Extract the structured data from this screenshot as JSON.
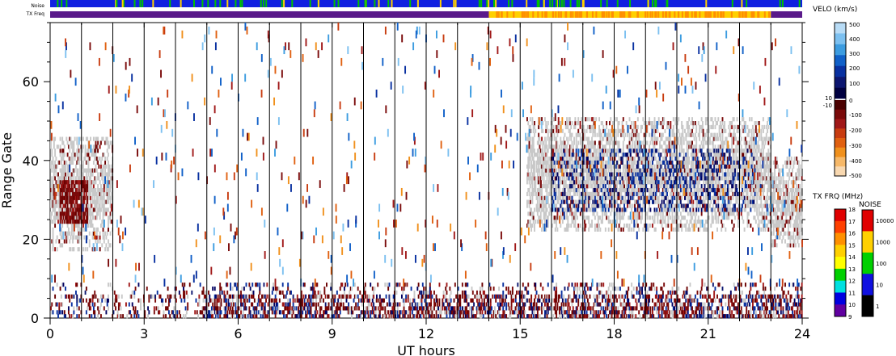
{
  "chart_data": {
    "type": "heatmap",
    "title": "",
    "xlabel": "UT hours",
    "ylabel": "Range Gate",
    "xlim": [
      0,
      24
    ],
    "ylim": [
      0,
      75
    ],
    "x_ticks": [
      0,
      3,
      6,
      9,
      12,
      15,
      18,
      21,
      24
    ],
    "y_ticks": [
      0,
      20,
      40,
      60
    ],
    "hour_gridlines": [
      1,
      2,
      3,
      4,
      5,
      6,
      7,
      8,
      9,
      10,
      11,
      12,
      13,
      14,
      15,
      16,
      17,
      18,
      19,
      20,
      21,
      22,
      23
    ],
    "top_strips": {
      "noise_label": "Noise",
      "txfreq_label": "TX Freq",
      "txfreq_segments": [
        {
          "start": 0,
          "end": 14,
          "color": "#5a1a8a"
        },
        {
          "start": 14,
          "end": 23,
          "color": "#ffd000"
        },
        {
          "start": 23,
          "end": 24,
          "color": "#5a1a8a"
        }
      ]
    },
    "velocity_scale": {
      "title": "VELO (km/s)",
      "ticks": [
        "500",
        "400",
        "300",
        "200",
        "100",
        "10",
        "0",
        "-10",
        "-100",
        "-200",
        "-300",
        "-400",
        "-500"
      ],
      "colors_positive": [
        "#b8dcf6",
        "#7cc0f0",
        "#3c9ce0",
        "#1060c8",
        "#0830a0",
        "#0c1670",
        "#000040"
      ],
      "colors_negative": [
        "#4a0000",
        "#7a0a0a",
        "#a01818",
        "#c83c10",
        "#e06010",
        "#f0901c",
        "#f6b868",
        "#f8d8b0"
      ]
    },
    "txfrq_scale": {
      "title": "TX FRQ (MHz)",
      "ticks": [
        "18",
        "17",
        "16",
        "15",
        "14",
        "13",
        "12",
        "11",
        "10",
        "9"
      ],
      "colors": [
        "#e00000",
        "#ff4000",
        "#ff9000",
        "#ffd000",
        "#ffff00",
        "#00d000",
        "#00e0e0",
        "#0000e0",
        "#6000a0"
      ]
    },
    "noise_scale": {
      "title": "NOISE",
      "ticks": [
        "10000",
        "1000",
        "100",
        "10",
        "1"
      ],
      "colors": [
        "#e00000",
        "#ffd000",
        "#00d000",
        "#1010e0",
        "#000000"
      ]
    },
    "echo_regions": [
      {
        "name": "ground scatter early",
        "x": [
          0.0,
          2.0
        ],
        "gates": [
          17,
          45
        ],
        "kind": "ground"
      },
      {
        "name": "negative echoes early",
        "x": [
          0.3,
          1.2
        ],
        "gates": [
          24,
          34
        ],
        "kind": "negative"
      },
      {
        "name": "ground scatter late",
        "x": [
          15.2,
          23.0
        ],
        "gates": [
          22,
          50
        ],
        "kind": "ground"
      },
      {
        "name": "positive echoes late",
        "x": [
          16.0,
          22.5
        ],
        "gates": [
          27,
          42
        ],
        "kind": "positive"
      },
      {
        "name": "ground scatter end",
        "x": [
          23.0,
          24.0
        ],
        "gates": [
          18,
          40
        ],
        "kind": "ground"
      },
      {
        "name": "near-range echoes",
        "x": [
          0.0,
          24.0
        ],
        "gates": [
          0,
          8
        ],
        "kind": "mixed"
      }
    ]
  }
}
